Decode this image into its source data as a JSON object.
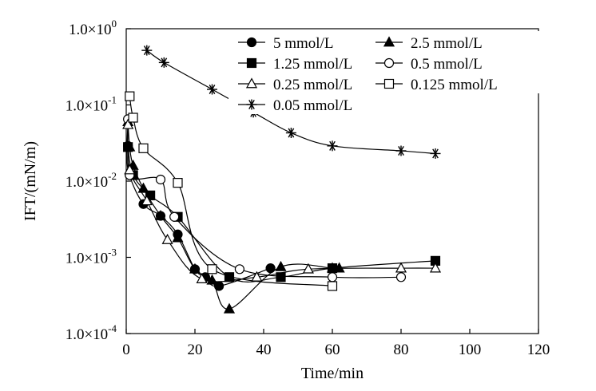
{
  "chart_data": {
    "type": "scatter",
    "xlabel": "Time/min",
    "ylabel": "IFT/(mN/m)",
    "xlim": [
      0,
      120
    ],
    "ylim": [
      0.0001,
      1
    ],
    "y_scale": "log",
    "grid": false,
    "legend_position": "top-right",
    "x_ticks": [
      "0",
      "20",
      "40",
      "60",
      "80",
      "100",
      "120"
    ],
    "y_ticks": [
      {
        "value": 1,
        "mant": "1.0×10",
        "exp": "0"
      },
      {
        "value": 0.1,
        "mant": "1.0×10",
        "exp": "-1"
      },
      {
        "value": 0.01,
        "mant": "1.0×10",
        "exp": "-2"
      },
      {
        "value": 0.001,
        "mant": "1.0×10",
        "exp": "-3"
      },
      {
        "value": 0.0001,
        "mant": "1.0×10",
        "exp": "-4"
      }
    ],
    "series": [
      {
        "name": "5 mmol/L",
        "marker": "circle-filled",
        "x": [
          0.5,
          1,
          5,
          10,
          15,
          20,
          23,
          27,
          42
        ],
        "y": [
          0.029,
          0.012,
          0.005,
          0.0035,
          0.002,
          0.0007,
          0.00055,
          0.00042,
          0.00072
        ]
      },
      {
        "name": "2.5 mmol/L",
        "marker": "triangle-filled",
        "x": [
          0.5,
          1,
          2,
          5,
          10,
          15,
          20,
          25,
          30,
          45,
          60,
          62
        ],
        "y": [
          0.06,
          0.028,
          0.016,
          0.008,
          0.0035,
          0.0018,
          0.0007,
          0.0005,
          0.00021,
          0.00075,
          0.00072,
          0.00072
        ]
      },
      {
        "name": "1.25 mmol/L",
        "marker": "square-filled",
        "x": [
          0.5,
          2,
          7,
          15,
          30,
          45,
          60,
          90
        ],
        "y": [
          0.028,
          0.012,
          0.0065,
          0.0034,
          0.00055,
          0.00055,
          0.00072,
          0.0009
        ]
      },
      {
        "name": "0.5 mmol/L",
        "marker": "circle-open",
        "x": [
          0.5,
          1,
          10,
          14,
          33,
          60,
          80
        ],
        "y": [
          0.065,
          0.012,
          0.0105,
          0.0034,
          0.0007,
          0.00055,
          0.00055
        ]
      },
      {
        "name": "0.25 mmol/L",
        "marker": "triangle-open",
        "x": [
          0.5,
          1,
          6,
          12,
          22,
          38,
          53,
          80,
          90
        ],
        "y": [
          0.055,
          0.014,
          0.0055,
          0.0017,
          0.00052,
          0.00055,
          0.0007,
          0.00072,
          0.00072
        ]
      },
      {
        "name": "0.125 mmol/L",
        "marker": "square-open",
        "x": [
          1,
          2,
          5,
          15,
          25,
          60
        ],
        "y": [
          0.13,
          0.068,
          0.027,
          0.0095,
          0.0007,
          0.00042
        ]
      },
      {
        "name": "0.05 mmol/L",
        "marker": "asterisk",
        "x": [
          6,
          11,
          25,
          37,
          48,
          60,
          80,
          90
        ],
        "y": [
          0.52,
          0.36,
          0.16,
          0.08,
          0.043,
          0.029,
          0.025,
          0.023
        ]
      }
    ]
  }
}
